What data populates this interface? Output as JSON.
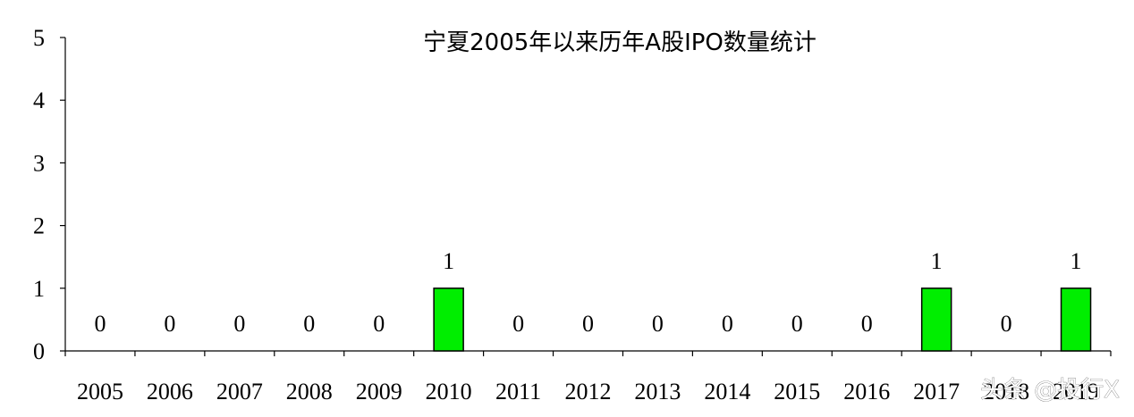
{
  "chart_data": {
    "type": "bar",
    "title": "宁夏2005年以来历年A股IPO数量统计",
    "categories": [
      "2005",
      "2006",
      "2007",
      "2008",
      "2009",
      "2010",
      "2011",
      "2012",
      "2013",
      "2014",
      "2015",
      "2016",
      "2017",
      "2018",
      "2019"
    ],
    "values": [
      0,
      0,
      0,
      0,
      0,
      1,
      0,
      0,
      0,
      0,
      0,
      0,
      1,
      0,
      1
    ],
    "data_labels": [
      "0",
      "0",
      "0",
      "0",
      "0",
      "1",
      "0",
      "0",
      "0",
      "0",
      "0",
      "0",
      "1",
      "0",
      "1"
    ],
    "ylim": [
      0,
      5
    ],
    "yticks": [
      "0",
      "1",
      "2",
      "3",
      "4",
      "5"
    ],
    "xlabel": "",
    "ylabel": "",
    "grid": false,
    "bar_color": "#00ee00"
  },
  "watermark": "头条 @投行X"
}
